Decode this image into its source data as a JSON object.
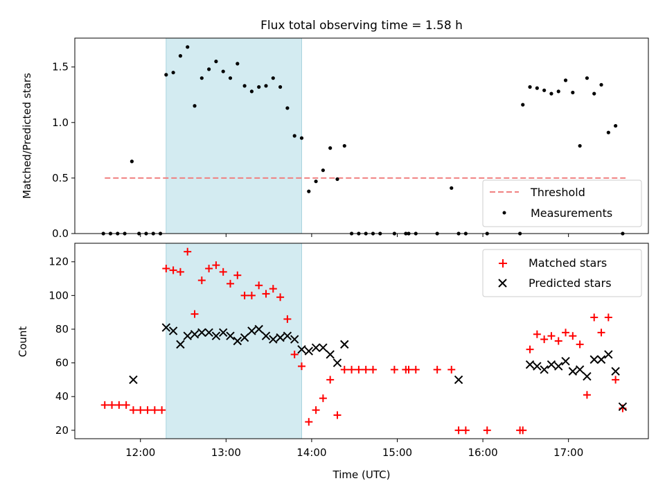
{
  "chart_data": [
    {
      "type": "scatter",
      "title": "Flux total observing time = 1.58 h",
      "xlabel": "",
      "ylabel": "Matched/Predicted stars",
      "xlim": [
        "11:14",
        "17:56"
      ],
      "ylim": [
        0,
        1.76
      ],
      "yticks": [
        "0.0",
        "0.5",
        "1.0",
        "1.5"
      ],
      "grid": false,
      "legend_position": "lower-right",
      "shaded_interval": {
        "start": "12:18",
        "end": "13:53",
        "color": "#d3ebf1"
      },
      "series": [
        {
          "name": "Threshold",
          "kind": "dashed-line",
          "color": "#f08080",
          "x": [
            "11:35",
            "17:40"
          ],
          "values": [
            0.5,
            0.5
          ]
        },
        {
          "name": "Measurements",
          "kind": "points",
          "color": "#000000",
          "x": [
            "11:34",
            "11:39",
            "11:44",
            "11:49",
            "11:54",
            "11:59",
            "12:04",
            "12:09",
            "12:14",
            "12:18",
            "12:23",
            "12:28",
            "12:33",
            "12:38",
            "12:43",
            "12:48",
            "12:53",
            "12:58",
            "13:03",
            "13:08",
            "13:13",
            "13:18",
            "13:23",
            "13:28",
            "13:33",
            "13:38",
            "13:43",
            "13:48",
            "13:53",
            "13:58",
            "14:03",
            "14:08",
            "14:13",
            "14:18",
            "14:23",
            "14:28",
            "14:33",
            "14:38",
            "14:43",
            "14:48",
            "14:58",
            "15:06",
            "15:08",
            "15:13",
            "15:28",
            "15:38",
            "15:43",
            "15:48",
            "16:03",
            "16:26",
            "16:28",
            "16:33",
            "16:38",
            "16:43",
            "16:48",
            "16:53",
            "16:58",
            "17:03",
            "17:08",
            "17:13",
            "17:18",
            "17:23",
            "17:28",
            "17:33",
            "17:38"
          ],
          "values": [
            0,
            0,
            0,
            0,
            0.65,
            0,
            0,
            0,
            0,
            1.43,
            1.45,
            1.6,
            1.68,
            1.15,
            1.4,
            1.48,
            1.55,
            1.46,
            1.4,
            1.53,
            1.33,
            1.28,
            1.32,
            1.33,
            1.4,
            1.32,
            1.13,
            0.88,
            0.86,
            0.38,
            0.47,
            0.57,
            0.77,
            0.49,
            0.79,
            0,
            0,
            0,
            0,
            0,
            0,
            0,
            0,
            0,
            0,
            0.41,
            0,
            0,
            0,
            0,
            1.16,
            1.32,
            1.31,
            1.29,
            1.26,
            1.28,
            1.38,
            1.27,
            0.79,
            1.4,
            1.26,
            1.34,
            0.91,
            0.97,
            0
          ]
        }
      ]
    },
    {
      "type": "scatter",
      "title": "",
      "xlabel": "Time (UTC)",
      "ylabel": "Count",
      "xlim": [
        "11:14",
        "17:56"
      ],
      "ylim": [
        15,
        131
      ],
      "xticks": [
        "12:00",
        "13:00",
        "14:00",
        "15:00",
        "16:00",
        "17:00"
      ],
      "yticks": [
        "20",
        "40",
        "60",
        "80",
        "100",
        "120"
      ],
      "grid": false,
      "legend_position": "upper-right",
      "shaded_interval": {
        "start": "12:18",
        "end": "13:53",
        "color": "#d3ebf1"
      },
      "series": [
        {
          "name": "Matched stars",
          "marker": "plus",
          "color": "#ff0000",
          "x": [
            "11:35",
            "11:40",
            "11:45",
            "11:50",
            "11:55",
            "12:00",
            "12:05",
            "12:10",
            "12:15",
            "12:18",
            "12:23",
            "12:28",
            "12:33",
            "12:38",
            "12:43",
            "12:48",
            "12:53",
            "12:58",
            "13:03",
            "13:08",
            "13:13",
            "13:18",
            "13:23",
            "13:28",
            "13:33",
            "13:38",
            "13:43",
            "13:48",
            "13:53",
            "13:58",
            "14:03",
            "14:08",
            "14:13",
            "14:18",
            "14:23",
            "14:28",
            "14:33",
            "14:38",
            "14:43",
            "14:58",
            "15:06",
            "15:08",
            "15:13",
            "15:28",
            "15:38",
            "15:43",
            "15:48",
            "16:03",
            "16:26",
            "16:28",
            "16:33",
            "16:38",
            "16:43",
            "16:48",
            "16:53",
            "16:58",
            "17:03",
            "17:08",
            "17:13",
            "17:18",
            "17:23",
            "17:28",
            "17:33",
            "17:38"
          ],
          "values": [
            35,
            35,
            35,
            35,
            32,
            32,
            32,
            32,
            32,
            116,
            115,
            114,
            126,
            89,
            109,
            116,
            118,
            114,
            107,
            112,
            100,
            100,
            106,
            101,
            104,
            99,
            86,
            65,
            58,
            25,
            32,
            39,
            50,
            29,
            56,
            56,
            56,
            56,
            56,
            56,
            56,
            56,
            56,
            56,
            56,
            20,
            20,
            20,
            20,
            20,
            68,
            77,
            74,
            76,
            73,
            78,
            76,
            71,
            41,
            87,
            78,
            87,
            50,
            33
          ]
        },
        {
          "name": "Predicted stars",
          "marker": "cross",
          "color": "#000000",
          "x": [
            "11:55",
            "12:18",
            "12:23",
            "12:28",
            "12:33",
            "12:38",
            "12:43",
            "12:48",
            "12:53",
            "12:58",
            "13:03",
            "13:08",
            "13:13",
            "13:18",
            "13:23",
            "13:28",
            "13:33",
            "13:38",
            "13:43",
            "13:48",
            "13:53",
            "13:58",
            "14:03",
            "14:08",
            "14:13",
            "14:18",
            "14:23",
            "15:43",
            "16:33",
            "16:38",
            "16:43",
            "16:48",
            "16:53",
            "16:58",
            "17:03",
            "17:08",
            "17:13",
            "17:18",
            "17:23",
            "17:28",
            "17:33",
            "17:38"
          ],
          "values": [
            50,
            81,
            79,
            71,
            76,
            77,
            78,
            78,
            76,
            78,
            76,
            73,
            75,
            79,
            80,
            76,
            74,
            75,
            76,
            74,
            68,
            67,
            69,
            69,
            65,
            60,
            71,
            50,
            59,
            58,
            56,
            59,
            58,
            61,
            55,
            56,
            52,
            62,
            62,
            65,
            55,
            34
          ]
        }
      ]
    }
  ]
}
